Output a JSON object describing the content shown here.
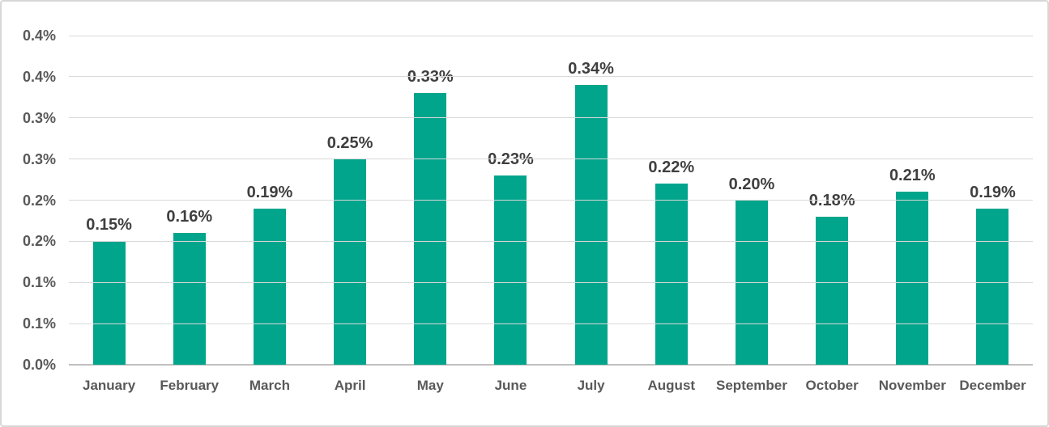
{
  "chart_data": {
    "type": "bar",
    "title": "",
    "xlabel": "",
    "ylabel": "",
    "categories": [
      "January",
      "February",
      "March",
      "April",
      "May",
      "June",
      "July",
      "August",
      "September",
      "October",
      "November",
      "December"
    ],
    "values": [
      0.15,
      0.16,
      0.19,
      0.25,
      0.33,
      0.23,
      0.34,
      0.22,
      0.2,
      0.18,
      0.21,
      0.19
    ],
    "data_labels": [
      "0.15%",
      "0.16%",
      "0.19%",
      "0.25%",
      "0.33%",
      "0.23%",
      "0.34%",
      "0.22%",
      "0.20%",
      "0.18%",
      "0.21%",
      "0.19%"
    ],
    "ylim": [
      0,
      0.4
    ],
    "y_axis": {
      "ticks": [
        {
          "value": 0.4,
          "label": "0.4%"
        },
        {
          "value": 0.35,
          "label": "0.4%"
        },
        {
          "value": 0.3,
          "label": "0.3%"
        },
        {
          "value": 0.25,
          "label": "0.3%"
        },
        {
          "value": 0.2,
          "label": "0.2%"
        },
        {
          "value": 0.15,
          "label": "0.2%"
        },
        {
          "value": 0.1,
          "label": "0.1%"
        },
        {
          "value": 0.05,
          "label": "0.1%"
        },
        {
          "value": 0.0,
          "label": "0.0%"
        }
      ]
    },
    "grid": true,
    "legend": false
  },
  "colors": {
    "bar_fill": "#00a58c",
    "gridline": "#d9d9d9",
    "axis_line": "#bfbfbf",
    "data_label_text": "#3f3f3f",
    "axis_label_text": "#595959",
    "frame_border": "#d7d7d7",
    "background": "#ffffff"
  }
}
